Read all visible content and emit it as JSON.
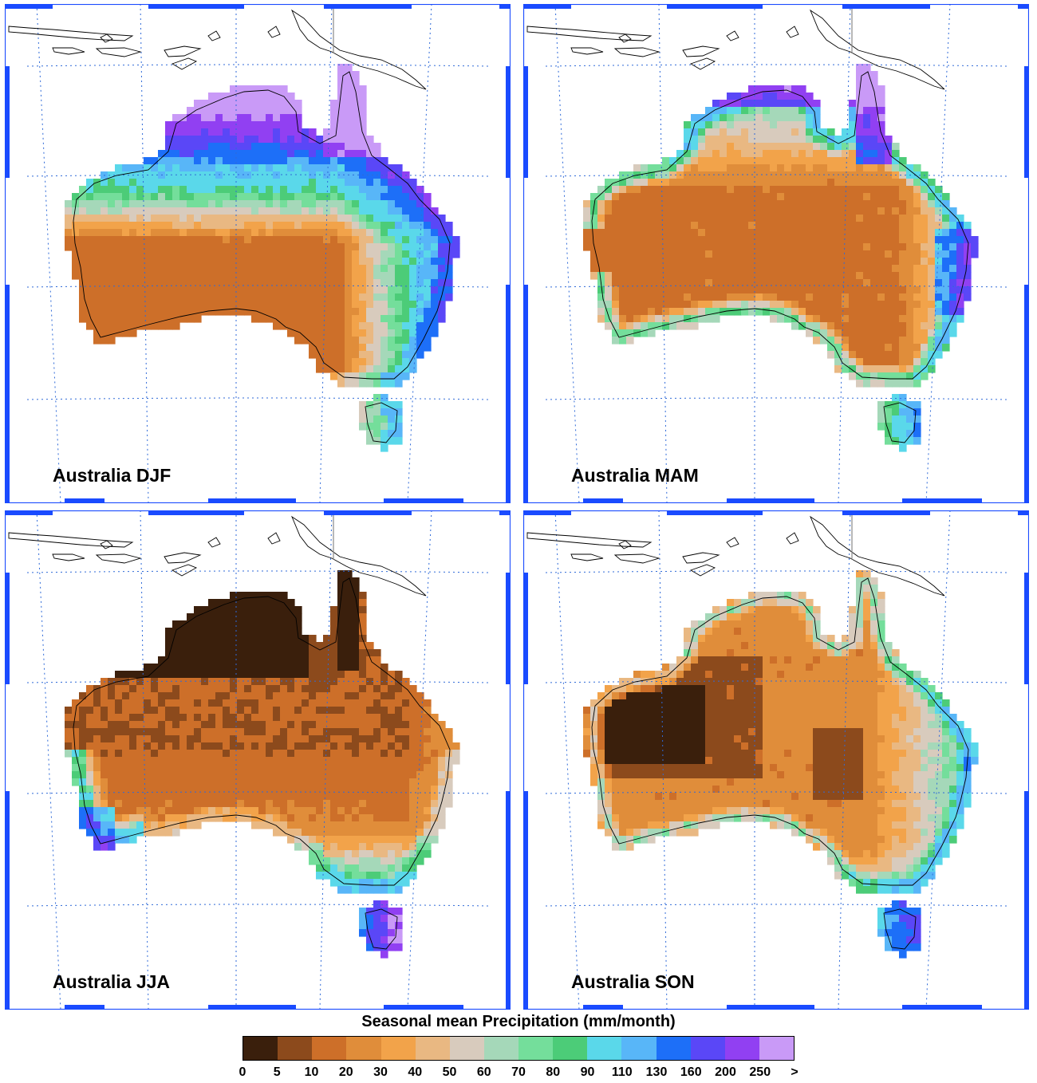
{
  "figure": {
    "panels": [
      {
        "id": "DJF",
        "title": "Australia DJF"
      },
      {
        "id": "MAM",
        "title": "Australia MAM"
      },
      {
        "id": "JJA",
        "title": "Australia JJA"
      },
      {
        "id": "SON",
        "title": "Australia SON"
      }
    ]
  },
  "legend": {
    "title": "Seasonal mean Precipitation (mm/month)",
    "labels": [
      "0",
      "5",
      "10",
      "20",
      "30",
      "40",
      "50",
      "60",
      "70",
      "80",
      "90",
      "110",
      "130",
      "160",
      "200",
      "250",
      ">"
    ],
    "colors": [
      "#3a1f0c",
      "#8c4a1c",
      "#cd6f29",
      "#e08d3a",
      "#f2a34a",
      "#e9b882",
      "#d8cbbd",
      "#a5d8b9",
      "#74de9b",
      "#4ccc78",
      "#5ad8ea",
      "#58b6f8",
      "#1d6ff8",
      "#5a47f7",
      "#9140f2",
      "#c99af7"
    ]
  },
  "colors": {
    "frame": "#1a4bff",
    "graticule": "#2f6ad8",
    "coast": "#000000"
  }
}
